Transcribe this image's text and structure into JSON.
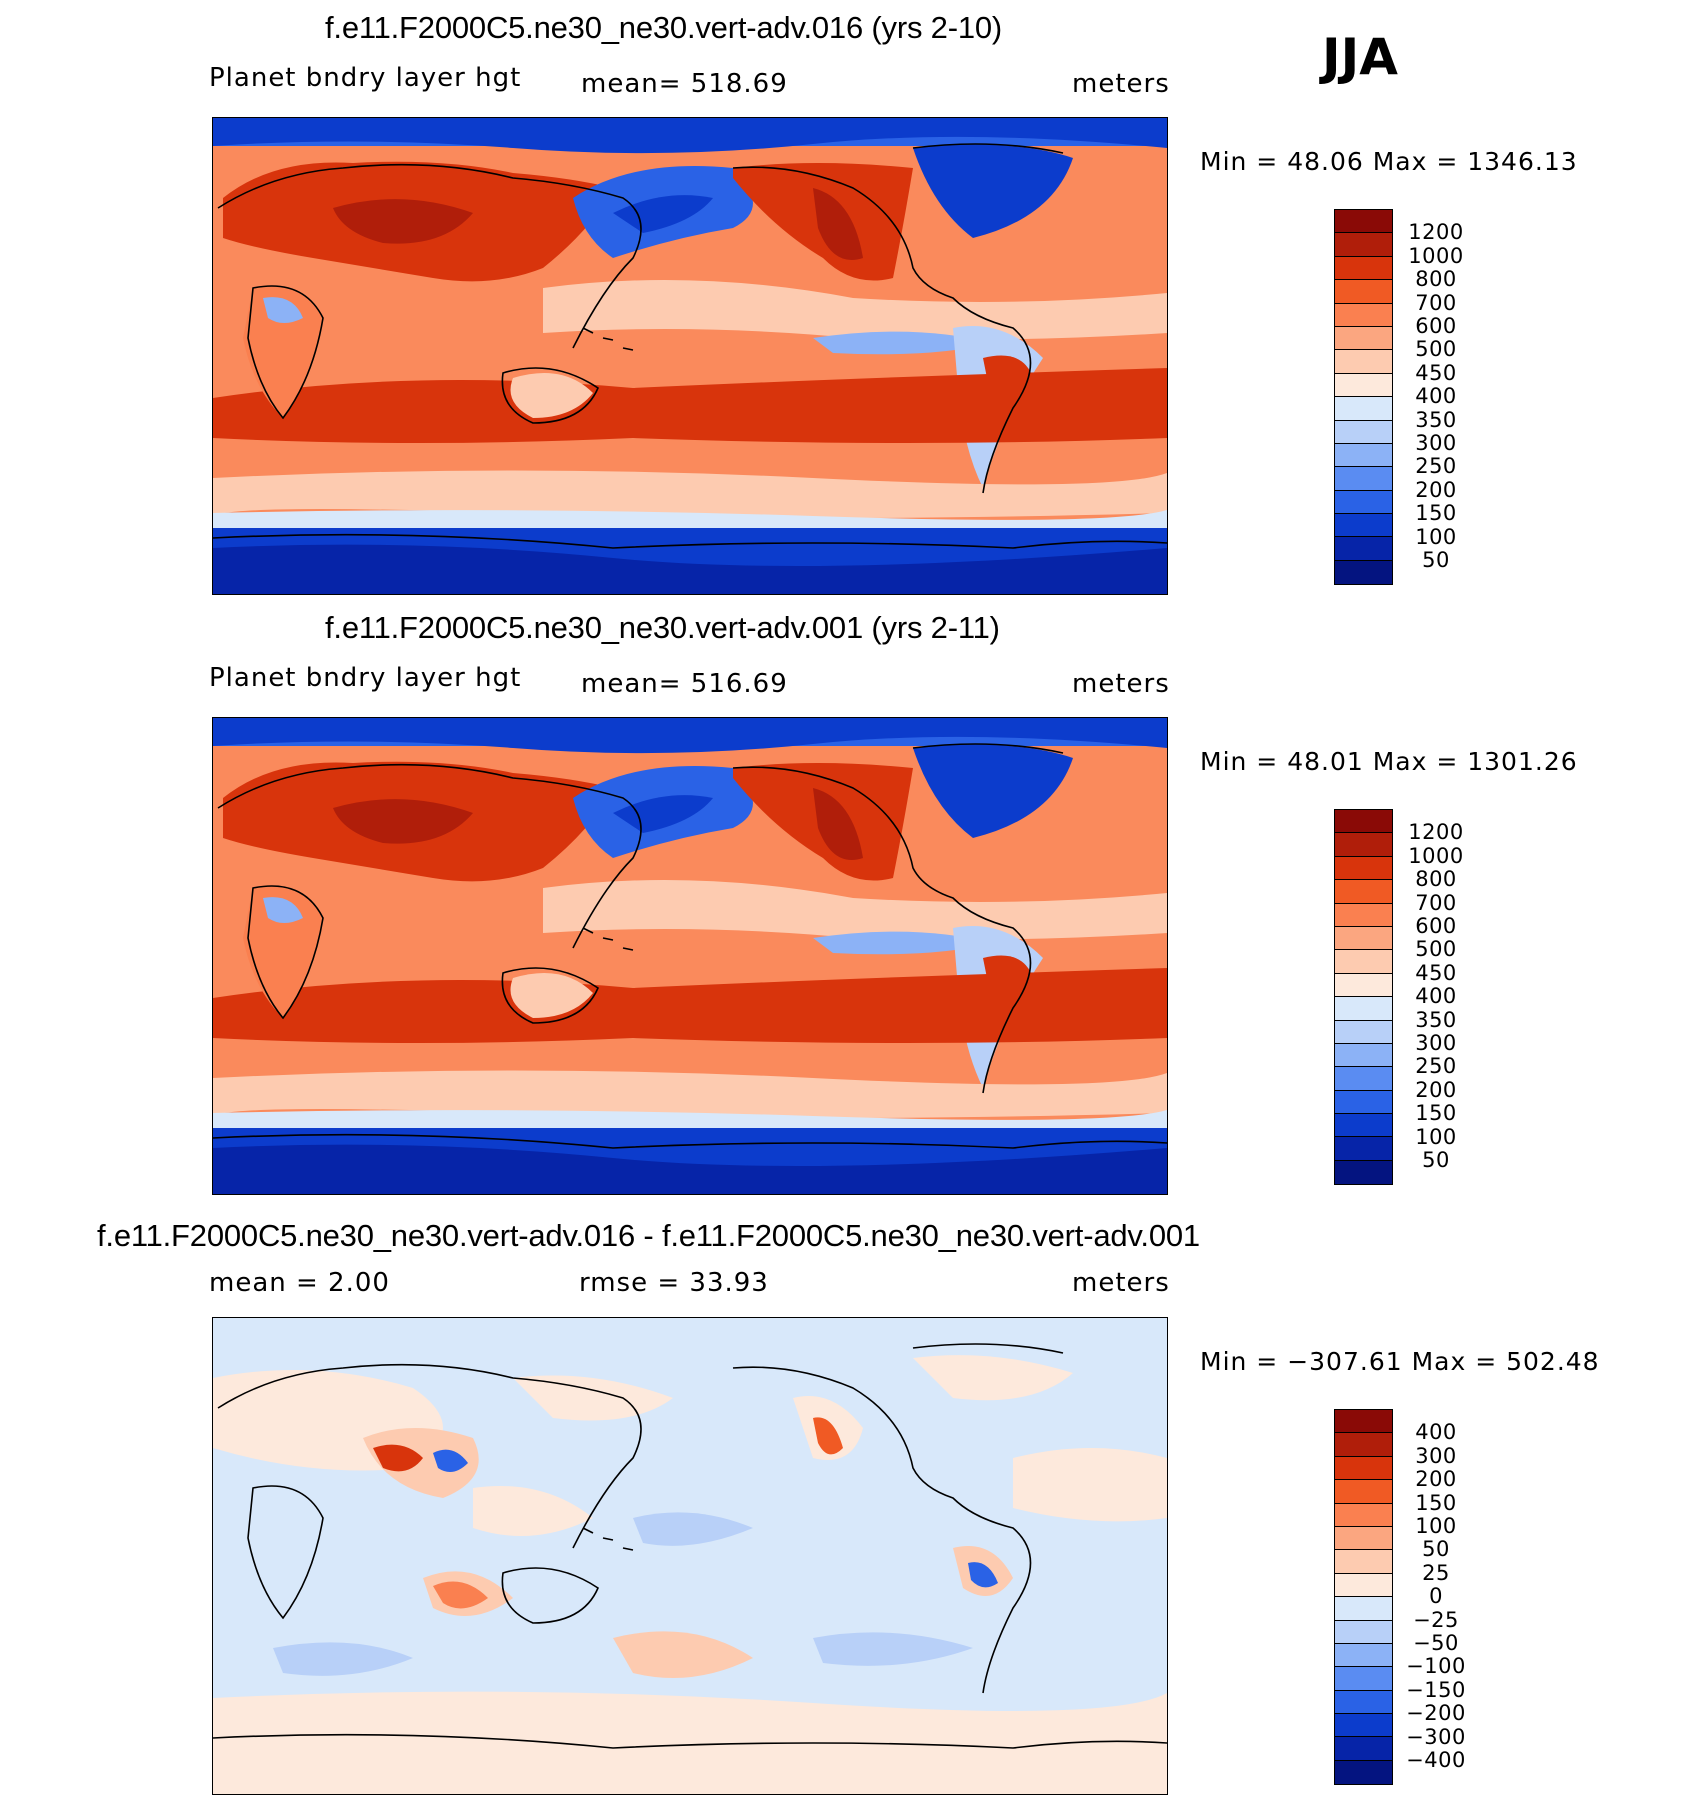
{
  "season": "JJA",
  "panels": [
    {
      "title": "f.e11.F2000C5.ne30_ne30.vert-adv.016 (yrs 2-10)",
      "variable": "Planet bndry layer hgt",
      "stat": "mean=  518.69",
      "units": "meters",
      "minmax": "Min =   48.06  Max  =  1346.13"
    },
    {
      "title": "f.e11.F2000C5.ne30_ne30.vert-adv.001 (yrs 2-11)",
      "variable": "Planet bndry layer hgt",
      "stat": "mean=  516.69",
      "units": "meters",
      "minmax": "Min =   48.01  Max  =  1301.26"
    },
    {
      "title": "f.e11.F2000C5.ne30_ne30.vert-adv.016 - f.e11.F2000C5.ne30_ne30.vert-adv.001",
      "variable": "mean  =     2.00",
      "stat": "rmse  =    33.93",
      "units": "meters",
      "minmax": "Min  =  −307.61  Max  =  502.48"
    }
  ],
  "colorbars": {
    "absolute": {
      "labels": [
        "1200",
        "1000",
        "800",
        "700",
        "600",
        "500",
        "450",
        "400",
        "350",
        "300",
        "250",
        "200",
        "150",
        "100",
        "50"
      ],
      "colors": [
        "#8a0a06",
        "#b01e0a",
        "#d8340c",
        "#f05a24",
        "#fa8050",
        "#fba680",
        "#fdcbb0",
        "#fde9dc",
        "#d8e8fa",
        "#b8d0f8",
        "#8cb2f6",
        "#5a8cf2",
        "#2a62e6",
        "#0c3ccc",
        "#0624a8",
        "#041480"
      ]
    },
    "difference": {
      "labels": [
        "400",
        "300",
        "200",
        "150",
        "100",
        "50",
        "25",
        "0",
        "−25",
        "−50",
        "−100",
        "−150",
        "−200",
        "−300",
        "−400"
      ],
      "colors": [
        "#8a0a06",
        "#b01e0a",
        "#d8340c",
        "#f05a24",
        "#fa8050",
        "#fba680",
        "#fdcbb0",
        "#fde9dc",
        "#d8e8fa",
        "#b8d0f8",
        "#8cb2f6",
        "#5a8cf2",
        "#2a62e6",
        "#0c3ccc",
        "#0624a8",
        "#041480"
      ]
    }
  }
}
